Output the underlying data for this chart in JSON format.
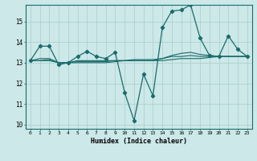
{
  "xlabel": "Humidex (Indice chaleur)",
  "background_color": "#cce8e8",
  "grid_color": "#aacccc",
  "line_color": "#1a6b6b",
  "xlim": [
    -0.5,
    23.5
  ],
  "ylim": [
    9.8,
    15.8
  ],
  "yticks": [
    10,
    11,
    12,
    13,
    14,
    15
  ],
  "xticks": [
    0,
    1,
    2,
    3,
    4,
    5,
    6,
    7,
    8,
    9,
    10,
    11,
    12,
    13,
    14,
    15,
    16,
    17,
    18,
    19,
    20,
    21,
    22,
    23
  ],
  "series1": [
    13.1,
    13.8,
    13.8,
    12.9,
    13.0,
    13.3,
    13.55,
    13.3,
    13.2,
    13.5,
    11.55,
    10.2,
    12.45,
    11.4,
    14.7,
    15.5,
    15.55,
    15.8,
    14.2,
    13.35,
    13.3,
    14.3,
    13.65,
    13.3
  ],
  "series2": [
    13.1,
    13.1,
    13.1,
    13.0,
    13.0,
    13.0,
    13.0,
    13.0,
    13.0,
    13.05,
    13.1,
    13.1,
    13.1,
    13.1,
    13.1,
    13.15,
    13.2,
    13.2,
    13.2,
    13.25,
    13.3,
    13.3,
    13.3,
    13.3
  ],
  "series3": [
    13.1,
    13.1,
    13.15,
    13.0,
    13.0,
    13.05,
    13.05,
    13.05,
    13.05,
    13.1,
    13.1,
    13.15,
    13.15,
    13.15,
    13.2,
    13.35,
    13.45,
    13.5,
    13.4,
    13.35,
    13.3,
    13.3,
    13.3,
    13.3
  ],
  "series4": [
    13.1,
    13.2,
    13.2,
    13.0,
    13.0,
    13.1,
    13.1,
    13.1,
    13.1,
    13.1,
    13.1,
    13.1,
    13.1,
    13.1,
    13.2,
    13.3,
    13.3,
    13.35,
    13.3,
    13.3,
    13.3,
    13.3,
    13.3,
    13.3
  ]
}
